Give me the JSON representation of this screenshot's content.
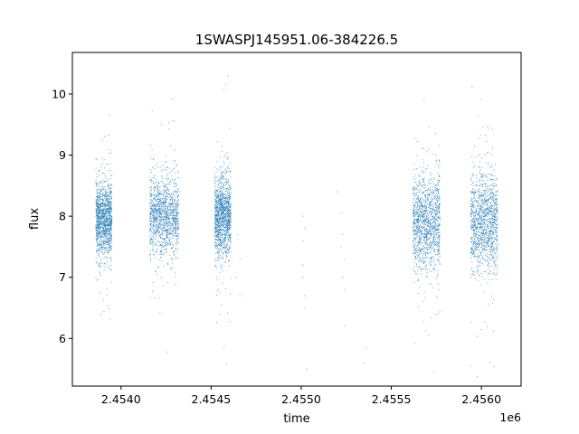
{
  "chart_data": {
    "type": "scatter",
    "title": "1SWASPJ145951.06-384226.5",
    "xlabel": "time",
    "ylabel": "flux",
    "x_offset_label": "1e6",
    "xlim": [
      2.45373,
      2.45622
    ],
    "ylim": [
      5.22,
      10.68
    ],
    "x_ticks": [
      2.454,
      2.4545,
      2.455,
      2.4555,
      2.456
    ],
    "x_tick_labels": [
      "2.4540",
      "2.4545",
      "2.4550",
      "2.4555",
      "2.4560"
    ],
    "y_ticks": [
      6,
      7,
      8,
      9,
      10
    ],
    "y_tick_labels": [
      "6",
      "7",
      "8",
      "9",
      "10"
    ],
    "grid": false,
    "color": "#1f77b4",
    "clusters": [
      {
        "x_range": [
          2.45386,
          2.45395
        ],
        "y_center": 7.95,
        "y_spread": 0.3,
        "density": "dense"
      },
      {
        "x_range": [
          2.45416,
          2.45432
        ],
        "y_center": 8.0,
        "y_spread": 0.32,
        "density": "dense"
      },
      {
        "x_range": [
          2.45452,
          2.45461
        ],
        "y_center": 8.0,
        "y_spread": 0.32,
        "density": "dense"
      },
      {
        "x_range": [
          2.45562,
          2.45577
        ],
        "y_center": 7.9,
        "y_spread": 0.38,
        "density": "dense"
      },
      {
        "x_range": [
          2.45594,
          2.45609
        ],
        "y_center": 7.9,
        "y_spread": 0.4,
        "density": "dense"
      }
    ],
    "sparse_points": [
      [
        2.45465,
        7.7
      ],
      [
        2.45466,
        7.3
      ],
      [
        2.45466,
        6.7
      ],
      [
        2.45464,
        7.0
      ],
      [
        2.45501,
        8.0
      ],
      [
        2.45501,
        7.6
      ],
      [
        2.45501,
        7.2
      ],
      [
        2.45502,
        6.7
      ],
      [
        2.45501,
        7.0
      ],
      [
        2.45502,
        6.5
      ],
      [
        2.45502,
        7.8
      ],
      [
        2.45503,
        5.5
      ],
      [
        2.45522,
        8.05
      ],
      [
        2.45523,
        7.7
      ],
      [
        2.45524,
        7.3
      ],
      [
        2.45524,
        6.8
      ],
      [
        2.45522,
        7.5
      ],
      [
        2.45524,
        6.2
      ],
      [
        2.45523,
        7.0
      ],
      [
        2.4552,
        8.4
      ],
      [
        2.45535,
        5.6
      ],
      [
        2.45536,
        5.85
      ]
    ]
  }
}
